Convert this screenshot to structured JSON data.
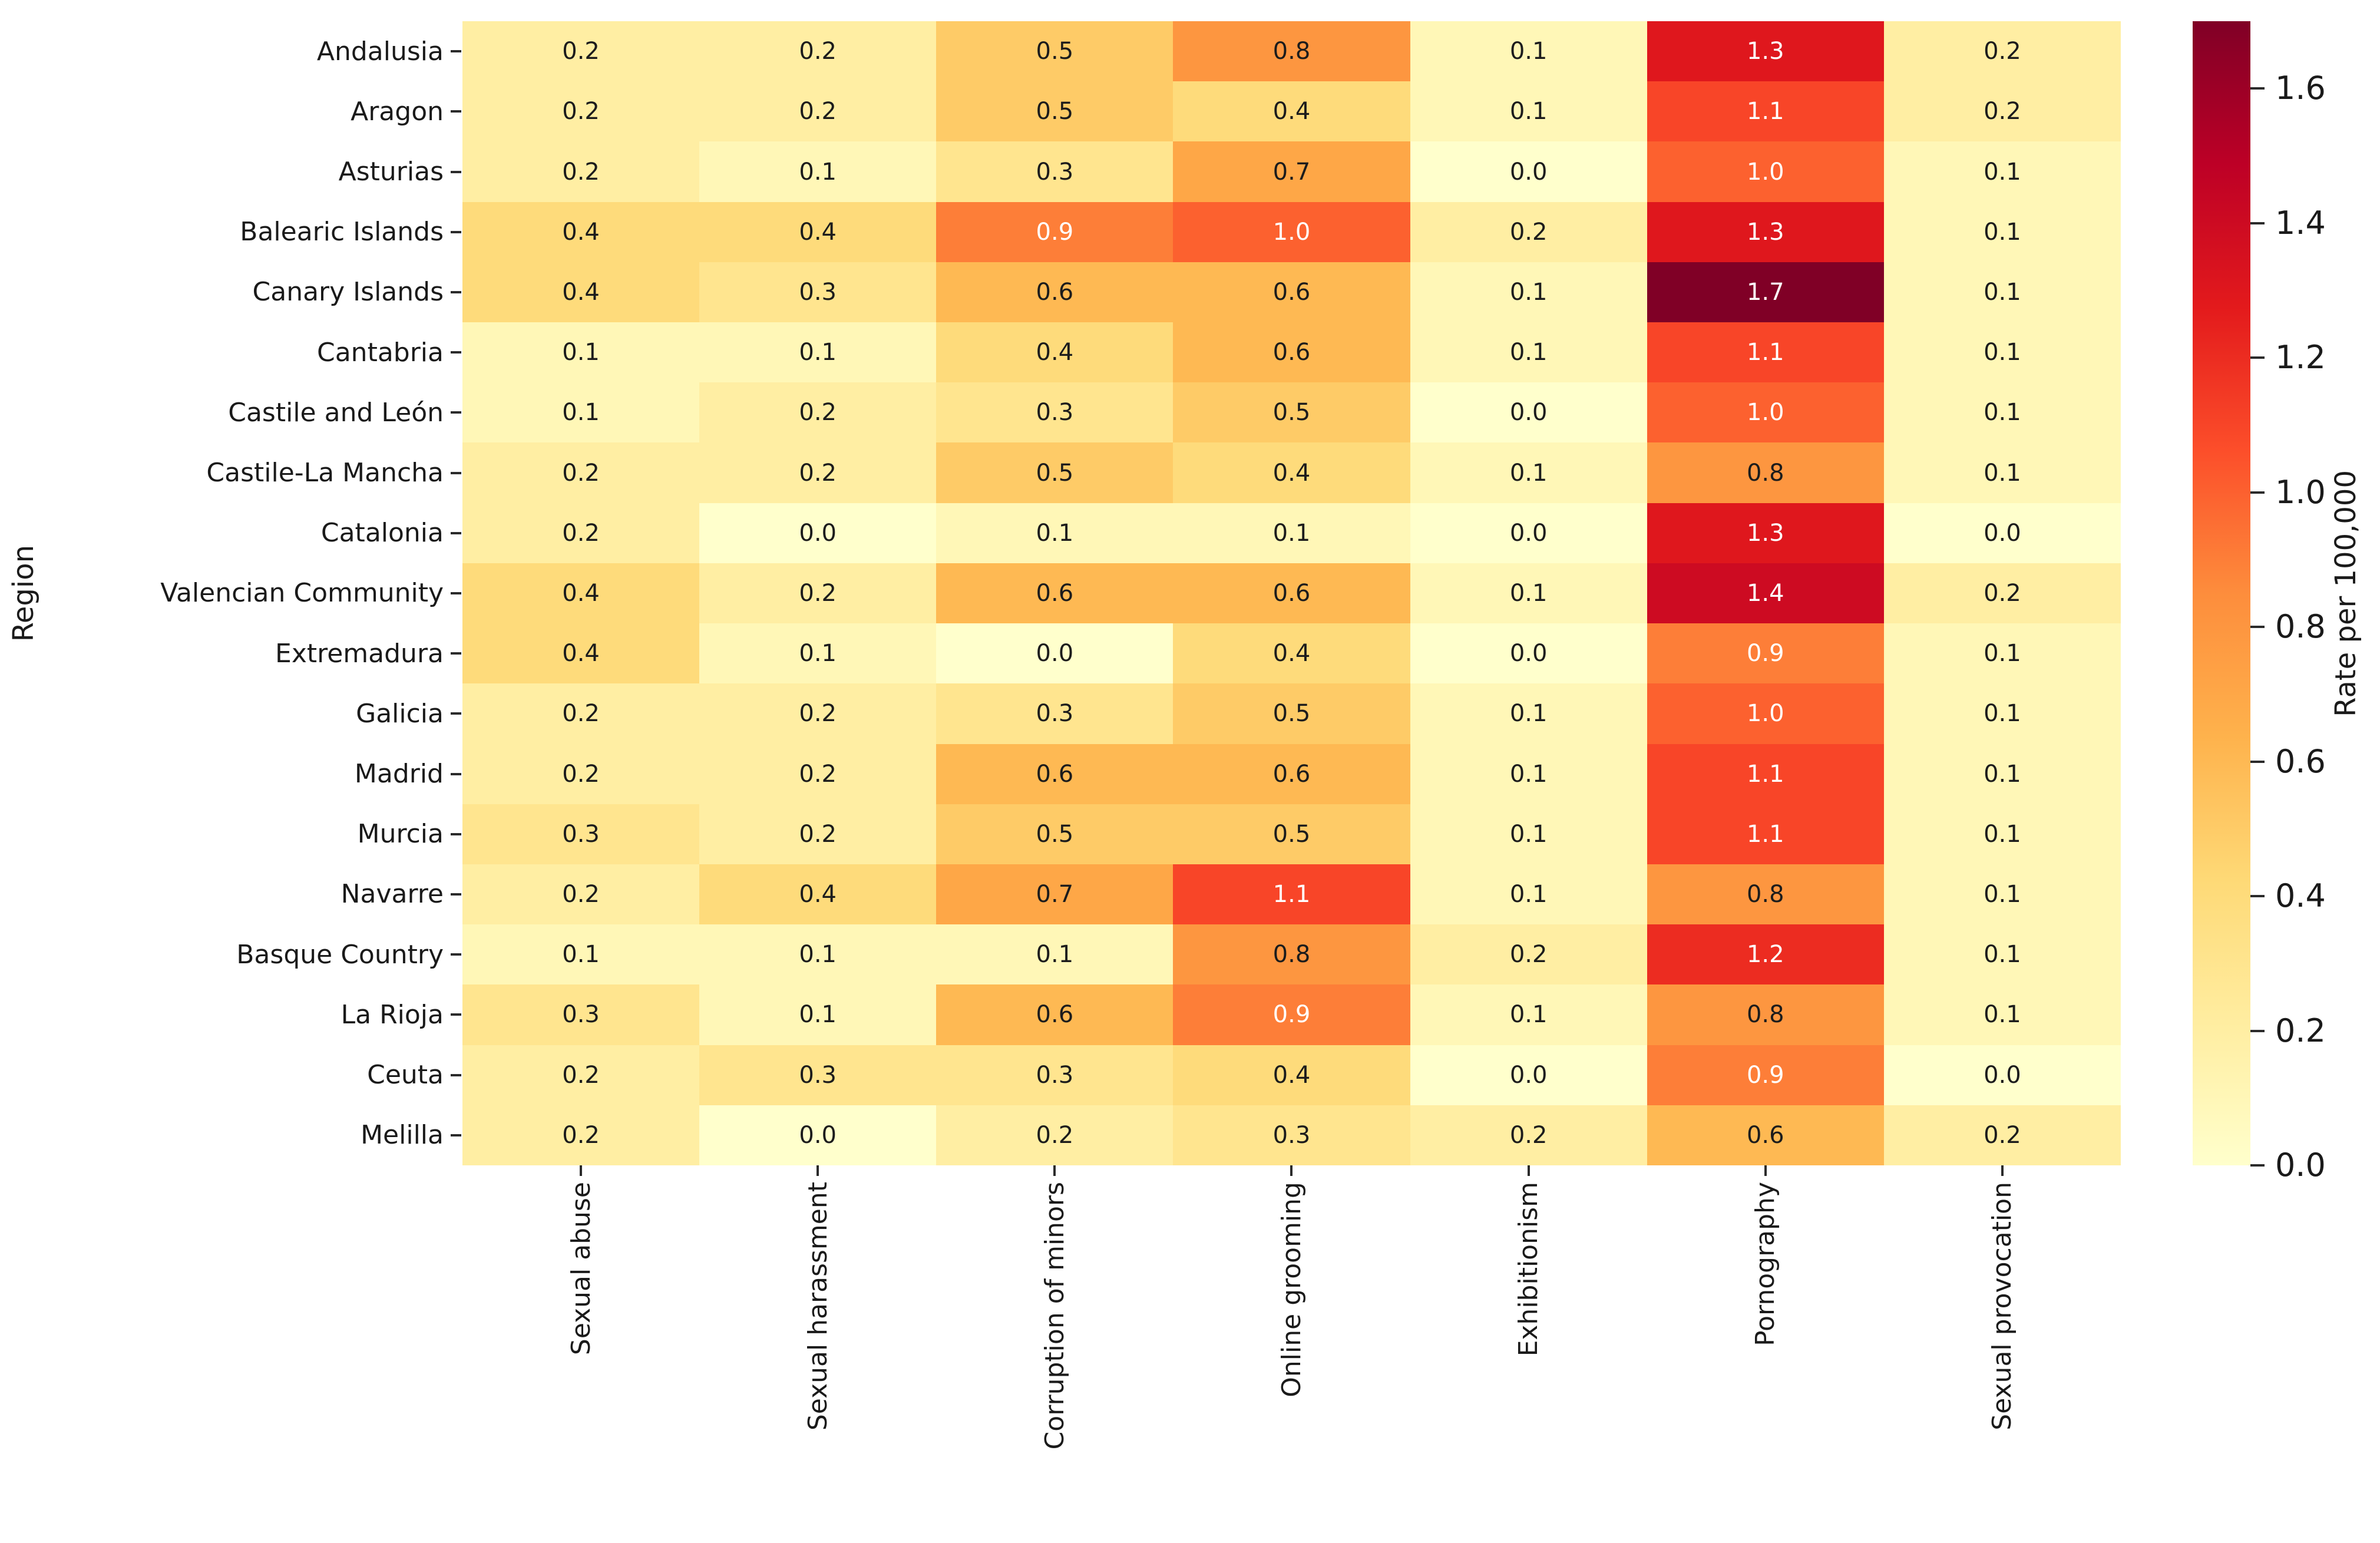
{
  "figure": {
    "background_color": "#ffffff",
    "annotation_dark_text_color": "#1c1c1c",
    "annotation_light_text_color": "#ffffff",
    "tick_color": "#2b2b2b"
  },
  "chart_data": {
    "type": "heatmap",
    "title": "",
    "xlabel": "",
    "ylabel": "Region",
    "colorbar_label": "Rate per 100,000",
    "rows": [
      "Andalusia",
      "Aragon",
      "Asturias",
      "Balearic Islands",
      "Canary Islands",
      "Cantabria",
      "Castile and León",
      "Castile-La Mancha",
      "Catalonia",
      "Valencian Community",
      "Extremadura",
      "Galicia",
      "Madrid",
      "Murcia",
      "Navarre",
      "Basque Country",
      "La Rioja",
      "Ceuta",
      "Melilla"
    ],
    "columns": [
      "Sexual abuse",
      "Sexual harassment",
      "Corruption of minors",
      "Online grooming",
      "Exhibitionism",
      "Pornography",
      "Sexual provocation"
    ],
    "values": [
      [
        0.2,
        0.2,
        0.5,
        0.8,
        0.1,
        1.3,
        0.2
      ],
      [
        0.2,
        0.2,
        0.5,
        0.4,
        0.1,
        1.1,
        0.2
      ],
      [
        0.2,
        0.1,
        0.3,
        0.7,
        0.0,
        1.0,
        0.1
      ],
      [
        0.4,
        0.4,
        0.9,
        1.0,
        0.2,
        1.3,
        0.1
      ],
      [
        0.4,
        0.3,
        0.6,
        0.6,
        0.1,
        1.7,
        0.1
      ],
      [
        0.1,
        0.1,
        0.4,
        0.6,
        0.1,
        1.1,
        0.1
      ],
      [
        0.1,
        0.2,
        0.3,
        0.5,
        0.0,
        1.0,
        0.1
      ],
      [
        0.2,
        0.2,
        0.5,
        0.4,
        0.1,
        0.8,
        0.1
      ],
      [
        0.2,
        0.0,
        0.1,
        0.1,
        0.0,
        1.3,
        0.0
      ],
      [
        0.4,
        0.2,
        0.6,
        0.6,
        0.1,
        1.4,
        0.2
      ],
      [
        0.4,
        0.1,
        0.0,
        0.4,
        0.0,
        0.9,
        0.1
      ],
      [
        0.2,
        0.2,
        0.3,
        0.5,
        0.1,
        1.0,
        0.1
      ],
      [
        0.2,
        0.2,
        0.6,
        0.6,
        0.1,
        1.1,
        0.1
      ],
      [
        0.3,
        0.2,
        0.5,
        0.5,
        0.1,
        1.1,
        0.1
      ],
      [
        0.2,
        0.4,
        0.7,
        1.1,
        0.1,
        0.8,
        0.1
      ],
      [
        0.1,
        0.1,
        0.1,
        0.8,
        0.2,
        1.2,
        0.1
      ],
      [
        0.3,
        0.1,
        0.6,
        0.9,
        0.1,
        0.8,
        0.1
      ],
      [
        0.2,
        0.3,
        0.3,
        0.4,
        0.0,
        0.9,
        0.0
      ],
      [
        0.2,
        0.0,
        0.2,
        0.3,
        0.2,
        0.6,
        0.2
      ]
    ],
    "vmin": 0.0,
    "vmax": 1.7,
    "colormap": "YlOrRd",
    "colormap_colors": [
      "#ffffcc",
      "#ffeda0",
      "#fed976",
      "#feb24c",
      "#fd8d3c",
      "#fc4e2a",
      "#e31a1c",
      "#bd0026",
      "#800026"
    ],
    "colorbar_ticks": [
      0.0,
      0.2,
      0.4,
      0.6,
      0.8,
      1.0,
      1.2,
      1.4,
      1.6
    ],
    "annotations_shown": true,
    "annotation_decimals": 1,
    "grid": false,
    "legend_position": "right-colorbar"
  }
}
